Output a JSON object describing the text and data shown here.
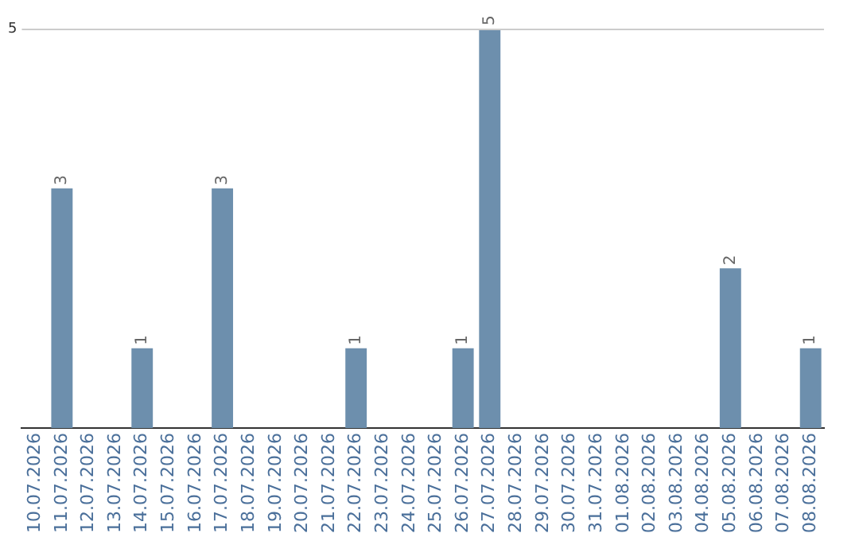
{
  "chart_data": {
    "type": "bar",
    "categories": [
      "10.07.2026",
      "11.07.2026",
      "12.07.2026",
      "13.07.2026",
      "14.07.2026",
      "15.07.2026",
      "16.07.2026",
      "17.07.2026",
      "18.07.2026",
      "19.07.2026",
      "20.07.2026",
      "21.07.2026",
      "22.07.2026",
      "23.07.2026",
      "24.07.2026",
      "25.07.2026",
      "26.07.2026",
      "27.07.2026",
      "28.07.2026",
      "29.07.2026",
      "30.07.2026",
      "31.07.2026",
      "01.08.2026",
      "02.08.2026",
      "03.08.2026",
      "04.08.2026",
      "05.08.2026",
      "06.08.2026",
      "07.08.2026",
      "08.08.2026"
    ],
    "values": [
      null,
      3,
      null,
      null,
      1,
      null,
      null,
      3,
      null,
      null,
      null,
      null,
      1,
      null,
      null,
      null,
      1,
      5,
      null,
      null,
      null,
      null,
      null,
      null,
      null,
      null,
      2,
      null,
      null,
      1
    ],
    "color": "#6d8fad",
    "ylim": [
      0,
      5
    ],
    "yticks": [
      5
    ],
    "legend": false,
    "data_labels": true
  }
}
